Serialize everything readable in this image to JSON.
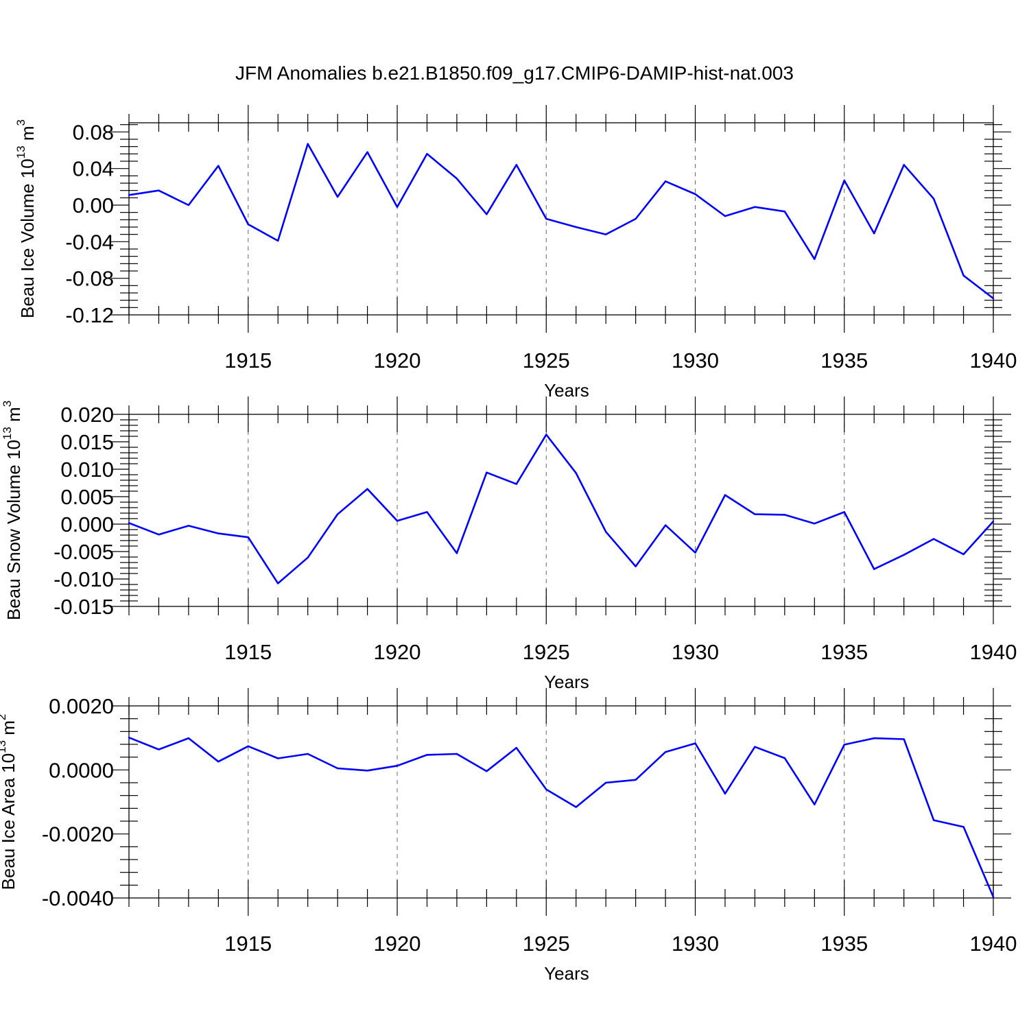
{
  "figure_title": "JFM Anomalies b.e21.B1850.f09_g17.CMIP6-DAMIP-hist-nat.003",
  "line_color": "#0000ff",
  "chart_data": [
    {
      "type": "line",
      "id": "ice-volume",
      "title": "",
      "xlabel": "Years",
      "ylabel_parts": [
        "Beau Ice Volume 10",
        "13",
        " m",
        "3"
      ],
      "xlim": [
        1911,
        1940
      ],
      "ylim": [
        -0.12,
        0.09
      ],
      "y_ticks": [
        0.08,
        0.04,
        0.0,
        -0.04,
        -0.08,
        -0.12
      ],
      "y_tick_labels": [
        "0.08",
        "0.04",
        "0.00",
        "-0.04",
        "-0.08",
        "-0.12"
      ],
      "x_ticks": [
        1915,
        1920,
        1925,
        1930,
        1935,
        1940
      ],
      "x_tick_labels": [
        "1915",
        "1920",
        "1925",
        "1930",
        "1935",
        "1940"
      ],
      "x": [
        1911,
        1912,
        1913,
        1914,
        1915,
        1916,
        1917,
        1918,
        1919,
        1920,
        1921,
        1922,
        1923,
        1924,
        1925,
        1926,
        1927,
        1928,
        1929,
        1930,
        1931,
        1932,
        1933,
        1934,
        1935,
        1936,
        1937,
        1938,
        1939,
        1940
      ],
      "values": [
        0.011,
        0.016,
        0.0,
        0.043,
        -0.021,
        -0.039,
        0.067,
        0.009,
        0.058,
        -0.002,
        0.056,
        0.029,
        -0.01,
        0.044,
        -0.015,
        -0.024,
        -0.032,
        -0.015,
        0.026,
        0.012,
        -0.012,
        -0.002,
        -0.007,
        -0.059,
        0.027,
        -0.031,
        0.044,
        0.007,
        -0.077,
        -0.102
      ]
    },
    {
      "type": "line",
      "id": "snow-volume",
      "title": "",
      "xlabel": "Years",
      "ylabel_parts": [
        "Beau Snow Volume 10",
        "13",
        " m",
        "3"
      ],
      "xlim": [
        1911,
        1940
      ],
      "ylim": [
        -0.015,
        0.02
      ],
      "y_ticks": [
        0.02,
        0.015,
        0.01,
        0.005,
        0.0,
        -0.005,
        -0.01,
        -0.015
      ],
      "y_tick_labels": [
        "0.020",
        "0.015",
        "0.010",
        "0.005",
        "0.000",
        "-0.005",
        "-0.010",
        "-0.015"
      ],
      "x_ticks": [
        1915,
        1920,
        1925,
        1930,
        1935,
        1940
      ],
      "x_tick_labels": [
        "1915",
        "1920",
        "1925",
        "1930",
        "1935",
        "1940"
      ],
      "x": [
        1911,
        1912,
        1913,
        1914,
        1915,
        1916,
        1917,
        1918,
        1919,
        1920,
        1921,
        1922,
        1923,
        1924,
        1925,
        1926,
        1927,
        1928,
        1929,
        1930,
        1931,
        1932,
        1933,
        1934,
        1935,
        1936,
        1937,
        1938,
        1939,
        1940
      ],
      "values": [
        0.0002,
        -0.0019,
        -0.0003,
        -0.0017,
        -0.0024,
        -0.0108,
        -0.0061,
        0.0018,
        0.0064,
        0.0006,
        0.0022,
        -0.0053,
        0.0094,
        0.0073,
        0.0163,
        0.0093,
        -0.0014,
        -0.0077,
        -0.0002,
        -0.0052,
        0.0053,
        0.0018,
        0.0017,
        0.0001,
        0.0022,
        -0.0082,
        -0.0056,
        -0.0027,
        -0.0055,
        0.0005
      ]
    },
    {
      "type": "line",
      "id": "ice-area",
      "title": "",
      "xlabel": "Years",
      "ylabel_parts": [
        "Beau Ice Area 10",
        "13",
        " m",
        "2"
      ],
      "xlim": [
        1911,
        1940
      ],
      "ylim": [
        -0.004,
        0.002
      ],
      "y_ticks": [
        0.002,
        0.0,
        -0.002,
        -0.004
      ],
      "y_tick_labels": [
        "0.0020",
        "0.0000",
        "-0.0020",
        "-0.0040"
      ],
      "x_ticks": [
        1915,
        1920,
        1925,
        1930,
        1935,
        1940
      ],
      "x_tick_labels": [
        "1915",
        "1920",
        "1925",
        "1930",
        "1935",
        "1940"
      ],
      "x": [
        1911,
        1912,
        1913,
        1914,
        1915,
        1916,
        1917,
        1918,
        1919,
        1920,
        1921,
        1922,
        1923,
        1924,
        1925,
        1926,
        1927,
        1928,
        1929,
        1930,
        1931,
        1932,
        1933,
        1934,
        1935,
        1936,
        1937,
        1938,
        1939,
        1940
      ],
      "values": [
        0.00101,
        0.00064,
        0.00099,
        0.00026,
        0.00074,
        0.00036,
        0.0005,
        5e-05,
        -2e-05,
        0.00013,
        0.00047,
        0.0005,
        -4e-05,
        0.00069,
        -0.00061,
        -0.00116,
        -0.0004,
        -0.00031,
        0.00056,
        0.00083,
        -0.00074,
        0.00072,
        0.00037,
        -0.00108,
        0.00079,
        0.00099,
        0.00096,
        -0.00157,
        -0.00178,
        -0.00397
      ]
    }
  ]
}
